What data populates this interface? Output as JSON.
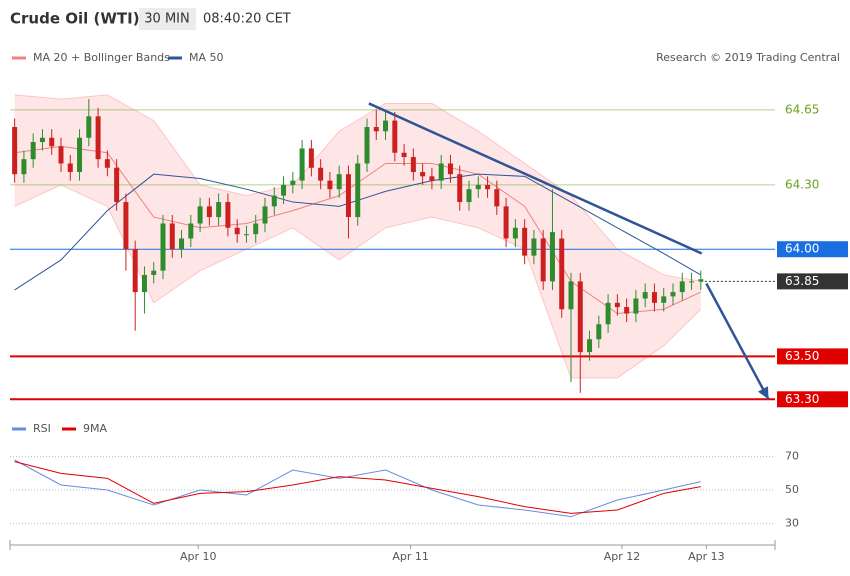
{
  "chart_data": [
    {
      "type": "candlestick",
      "title": "Crude Oil (WTI)",
      "timeframe": "30 MIN",
      "time": "08:40:20 CET",
      "credit": "Research © 2019 Trading Central",
      "xlim": [
        -0.5,
        82
      ],
      "ylim": [
        63.25,
        64.85
      ],
      "up_color": "#2e8b2e",
      "down_color": "#cc1f1f",
      "open": [
        64.57,
        64.35,
        64.42,
        64.5,
        64.52,
        64.48,
        64.4,
        64.36,
        64.52,
        64.62,
        64.42,
        64.38,
        64.22,
        64.0,
        63.8,
        63.88,
        63.9,
        64.12,
        64.0,
        64.05,
        64.12,
        64.2,
        64.15,
        64.22,
        64.1,
        64.07,
        64.07,
        64.12,
        64.2,
        64.25,
        64.3,
        64.32,
        64.47,
        64.38,
        64.32,
        64.28,
        64.35,
        64.15,
        64.4,
        64.57,
        64.55,
        64.6,
        64.45,
        64.43,
        64.36,
        64.34,
        64.32,
        64.4,
        64.35,
        64.22,
        64.28,
        64.3,
        64.28,
        64.2,
        64.05,
        64.1,
        63.97,
        64.05,
        63.85,
        64.05,
        63.72,
        63.85,
        63.52,
        63.58,
        63.65,
        63.75,
        63.73,
        63.7,
        63.77,
        63.8,
        63.75,
        63.78,
        63.8,
        63.85,
        63.85
      ],
      "high": [
        64.61,
        64.46,
        64.54,
        64.56,
        64.56,
        64.52,
        64.44,
        64.56,
        64.7,
        64.66,
        64.46,
        64.42,
        64.26,
        64.04,
        63.92,
        63.94,
        64.16,
        64.16,
        64.09,
        64.16,
        64.24,
        64.24,
        64.26,
        64.26,
        64.14,
        64.11,
        64.16,
        64.24,
        64.29,
        64.34,
        64.36,
        64.51,
        64.51,
        64.42,
        64.36,
        64.39,
        64.39,
        64.44,
        64.61,
        64.65,
        64.64,
        64.64,
        64.49,
        64.47,
        64.4,
        64.38,
        64.44,
        64.44,
        64.39,
        64.32,
        64.34,
        64.34,
        64.32,
        64.24,
        64.14,
        64.14,
        64.09,
        64.09,
        64.28,
        64.09,
        63.89,
        63.89,
        63.62,
        63.69,
        63.79,
        63.79,
        63.77,
        63.81,
        63.84,
        63.84,
        63.82,
        63.84,
        63.89,
        63.89,
        63.9
      ],
      "low": [
        64.31,
        64.31,
        64.38,
        64.46,
        64.44,
        64.36,
        64.32,
        64.32,
        64.48,
        64.38,
        64.34,
        64.18,
        63.9,
        63.62,
        63.7,
        63.84,
        63.86,
        63.96,
        63.96,
        64.01,
        64.08,
        64.11,
        64.11,
        64.06,
        64.03,
        64.03,
        64.03,
        64.08,
        64.16,
        64.21,
        64.26,
        64.28,
        64.34,
        64.28,
        64.24,
        64.24,
        64.05,
        64.11,
        64.36,
        64.51,
        64.51,
        64.41,
        64.39,
        64.32,
        64.3,
        64.28,
        64.28,
        64.31,
        64.18,
        64.18,
        64.24,
        64.24,
        64.16,
        64.01,
        64.01,
        63.93,
        63.93,
        63.81,
        63.81,
        63.68,
        63.38,
        63.33,
        63.48,
        63.54,
        63.61,
        63.69,
        63.66,
        63.66,
        63.73,
        63.71,
        63.71,
        63.74,
        63.76,
        63.81,
        63.81
      ],
      "close": [
        64.35,
        64.42,
        64.5,
        64.52,
        64.48,
        64.4,
        64.36,
        64.52,
        64.62,
        64.42,
        64.38,
        64.22,
        64.0,
        63.8,
        63.88,
        63.9,
        64.12,
        64.0,
        64.05,
        64.12,
        64.2,
        64.15,
        64.22,
        64.1,
        64.07,
        64.07,
        64.12,
        64.2,
        64.25,
        64.3,
        64.32,
        64.47,
        64.38,
        64.32,
        64.28,
        64.35,
        64.15,
        64.4,
        64.57,
        64.55,
        64.6,
        64.45,
        64.43,
        64.36,
        64.34,
        64.32,
        64.4,
        64.35,
        64.22,
        64.28,
        64.3,
        64.28,
        64.2,
        64.05,
        64.1,
        63.97,
        64.05,
        63.85,
        64.08,
        63.72,
        63.85,
        63.52,
        63.58,
        63.65,
        63.75,
        63.73,
        63.7,
        63.77,
        63.8,
        63.75,
        63.78,
        63.8,
        63.85,
        63.85,
        63.86
      ],
      "bands": {
        "color": "#ffd6d6",
        "x": [
          0,
          5,
          10,
          15,
          20,
          25,
          30,
          35,
          40,
          45,
          50,
          55,
          60,
          65,
          70,
          74
        ],
        "upper": [
          64.72,
          64.7,
          64.72,
          64.6,
          64.3,
          64.25,
          64.3,
          64.55,
          64.68,
          64.68,
          64.55,
          64.4,
          64.25,
          64.0,
          63.88,
          63.85
        ],
        "lower": [
          64.2,
          64.3,
          64.2,
          63.75,
          63.9,
          64.0,
          64.1,
          63.95,
          64.1,
          64.15,
          64.1,
          64.0,
          63.4,
          63.4,
          63.55,
          63.72
        ]
      },
      "series": [
        {
          "name": "MA 20 + Bollinger Bands",
          "color": "#f08080",
          "x": [
            0,
            5,
            10,
            15,
            20,
            25,
            30,
            35,
            40,
            45,
            50,
            55,
            60,
            65,
            70,
            74
          ],
          "values": [
            64.45,
            64.48,
            64.45,
            64.15,
            64.1,
            64.12,
            64.18,
            64.25,
            64.4,
            64.4,
            64.35,
            64.2,
            63.85,
            63.7,
            63.72,
            63.8
          ]
        },
        {
          "name": "MA 50",
          "color": "#2f5597",
          "x": [
            0,
            5,
            10,
            15,
            20,
            25,
            30,
            35,
            40,
            45,
            50,
            55,
            60,
            65,
            70,
            74
          ],
          "values": [
            63.81,
            63.95,
            64.18,
            64.35,
            64.33,
            64.28,
            64.22,
            64.2,
            64.27,
            64.32,
            64.35,
            64.34,
            64.22,
            64.1,
            63.98,
            63.88
          ]
        }
      ],
      "trendlines": [
        {
          "color": "#2f5597",
          "arrow": false,
          "x": [
            38.2,
            74.1
          ],
          "values": [
            64.68,
            63.98
          ]
        },
        {
          "color": "#2f5597",
          "arrow": true,
          "x": [
            74.6,
            81.3
          ],
          "values": [
            63.84,
            63.3
          ]
        }
      ],
      "levels": [
        {
          "value": 64.65,
          "label": "64.65",
          "color": "#6aa31e",
          "boxed": false,
          "dotted": false
        },
        {
          "value": 64.3,
          "label": "64.30",
          "color": "#6aa31e",
          "boxed": false,
          "dotted": false
        },
        {
          "value": 64.0,
          "label": "64.00",
          "color": "#1a6fe0",
          "boxed": true,
          "dotted": false
        },
        {
          "value": 63.85,
          "label": "63.85",
          "color": "#333333",
          "boxed": true,
          "dotted": true
        },
        {
          "value": 63.5,
          "label": "63.50",
          "color": "#e00000",
          "boxed": true,
          "dotted": false
        },
        {
          "value": 63.3,
          "label": "63.30",
          "color": "#e00000",
          "boxed": true,
          "dotted": false
        }
      ]
    },
    {
      "type": "line",
      "xlim": [
        -0.5,
        82
      ],
      "ylim": [
        23,
        77
      ],
      "yticks": [
        30,
        50,
        70
      ],
      "grid": true,
      "xticks": [
        {
          "value": 19.8,
          "label": "Apr 10"
        },
        {
          "value": 42.7,
          "label": "Apr 11"
        },
        {
          "value": 65.5,
          "label": "Apr 12"
        },
        {
          "value": 74.6,
          "label": "Apr 13"
        }
      ],
      "series": [
        {
          "name": "RSI",
          "color": "#6b8be0",
          "x": [
            0,
            5,
            10,
            15,
            20,
            25,
            30,
            35,
            40,
            45,
            50,
            55,
            60,
            65,
            70,
            74
          ],
          "values": [
            68,
            53,
            50,
            41,
            50,
            47,
            62,
            57,
            62,
            50,
            41,
            38,
            34,
            44,
            50,
            55
          ]
        },
        {
          "name": "9MA",
          "color": "#e00000",
          "x": [
            0,
            5,
            10,
            15,
            20,
            25,
            30,
            35,
            40,
            45,
            50,
            55,
            60,
            65,
            70,
            74
          ],
          "values": [
            67,
            60,
            57,
            42,
            48,
            49,
            53,
            58,
            56,
            51,
            46,
            40,
            36,
            38,
            48,
            52
          ]
        }
      ]
    }
  ]
}
